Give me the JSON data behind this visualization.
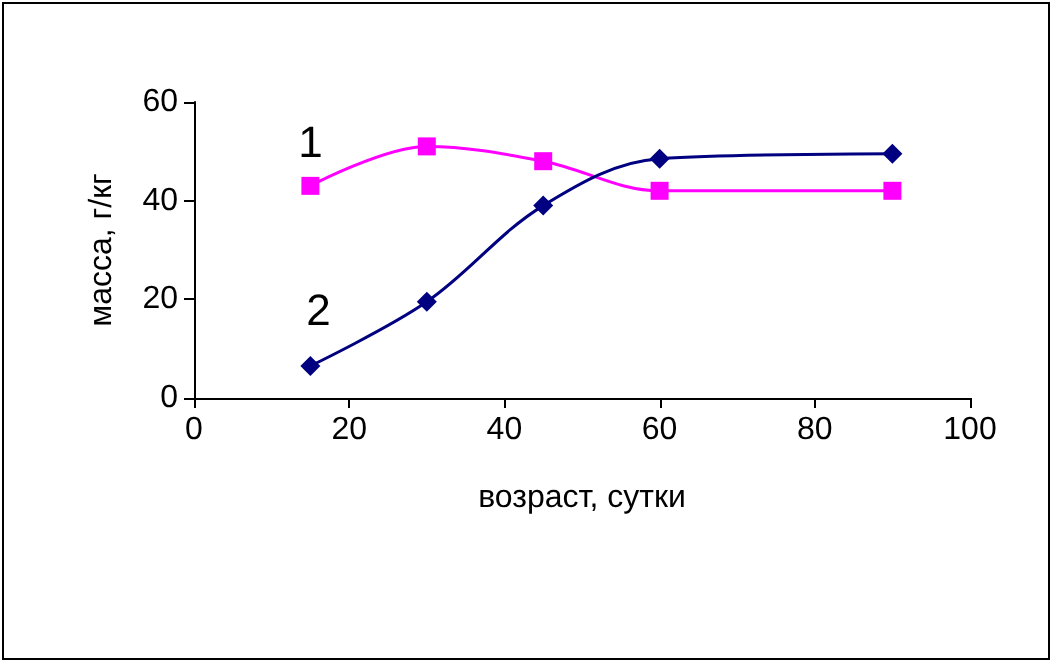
{
  "chart_data": {
    "type": "line",
    "xlabel": "возраст, сутки",
    "ylabel": "масса, г/кг",
    "x": [
      15,
      30,
      45,
      60,
      90
    ],
    "series": [
      {
        "name": "1",
        "color": "#ff00ff",
        "marker": "square",
        "values": [
          43,
          51,
          48,
          42,
          42
        ]
      },
      {
        "name": "2",
        "color": "#000080",
        "marker": "diamond",
        "values": [
          6.5,
          19.5,
          39,
          48.5,
          49.5
        ]
      }
    ],
    "xlim": [
      0,
      100
    ],
    "xticks": [
      0,
      20,
      40,
      60,
      80,
      100
    ],
    "ylim": [
      0,
      60
    ],
    "yticks": [
      0,
      20,
      40,
      60
    ],
    "grid": false,
    "legend": false
  }
}
